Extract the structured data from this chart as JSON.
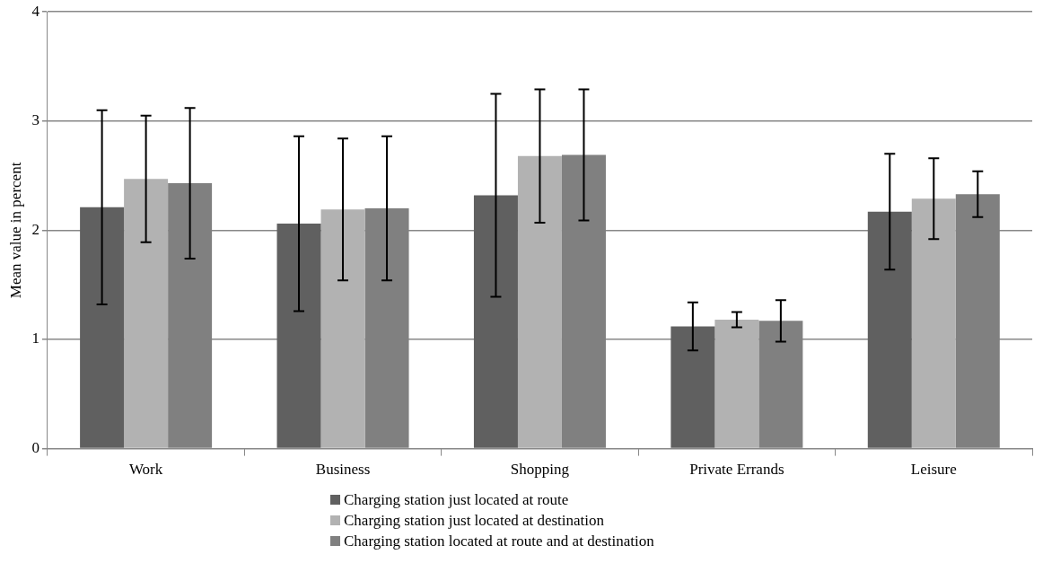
{
  "chart_data": {
    "type": "bar",
    "ylabel": "Mean value in percent",
    "categories": [
      "Work",
      "Business",
      "Shopping",
      "Private Errands",
      "Leisure"
    ],
    "series": [
      {
        "name": "Charging station just located at route",
        "color": "#606060",
        "values": [
          2.21,
          2.06,
          2.32,
          1.12,
          2.17
        ],
        "errors": [
          0.89,
          0.8,
          0.93,
          0.22,
          0.53
        ]
      },
      {
        "name": "Charging station just located at destination",
        "color": "#b2b2b2",
        "values": [
          2.47,
          2.19,
          2.68,
          1.18,
          2.29
        ],
        "errors": [
          0.58,
          0.65,
          0.61,
          0.07,
          0.37
        ]
      },
      {
        "name": "Charging station located at route and at destination",
        "color": "#808080",
        "values": [
          2.43,
          2.2,
          2.69,
          1.17,
          2.33
        ],
        "errors": [
          0.69,
          0.66,
          0.6,
          0.19,
          0.21
        ]
      }
    ],
    "ylim": [
      0,
      4
    ],
    "yticks": [
      0,
      1,
      2,
      3,
      4
    ],
    "grid": "y",
    "legend": "bottom"
  }
}
